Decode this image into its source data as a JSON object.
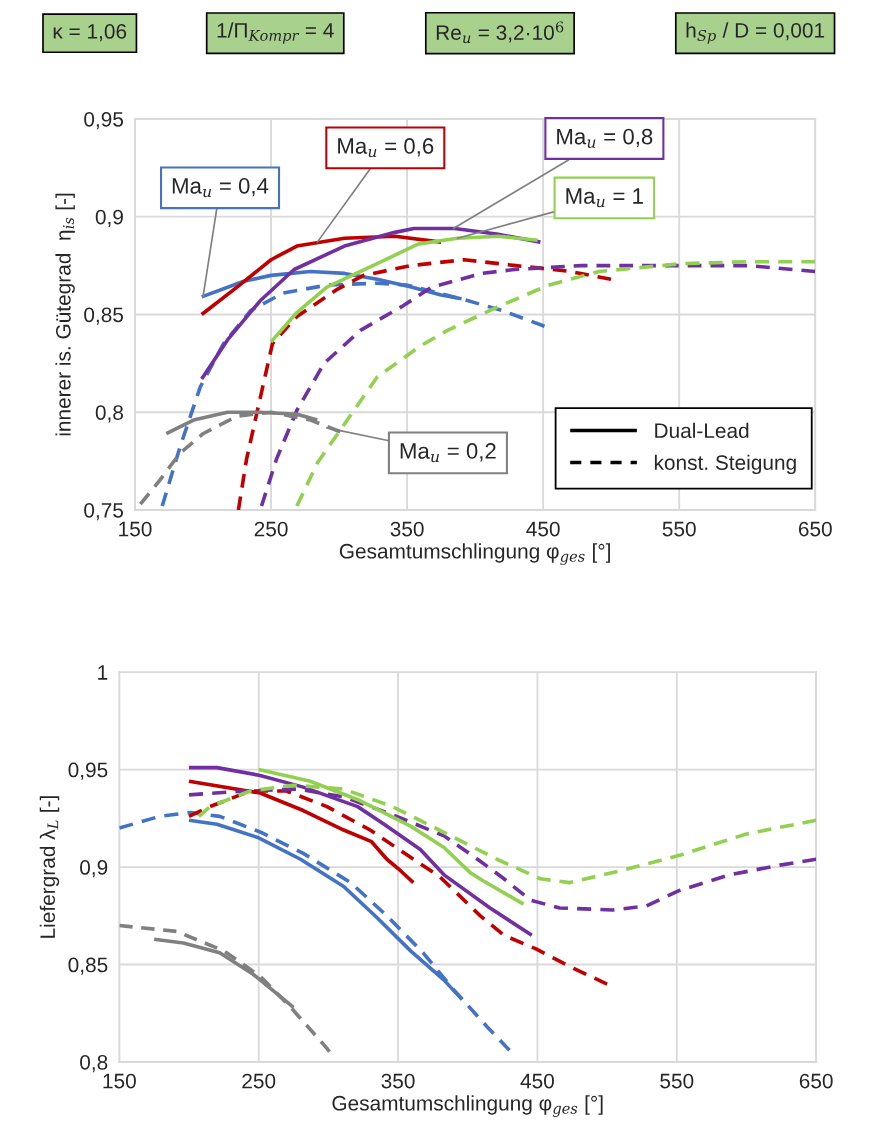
{
  "chart_data": [
    {
      "type": "line",
      "xlabel": "Gesamtumschlingung φ$_{ges}$ [°]",
      "ylabel": "innerer is. Gütegrad  η$_{is}$ [-]",
      "xlim": [
        150,
        650
      ],
      "xticks": [
        150,
        250,
        350,
        450,
        550,
        650
      ],
      "ylim": [
        0.75,
        0.95
      ],
      "yticks": [
        {
          "value": 0.75,
          "label": "0,75"
        },
        {
          "value": 0.8,
          "label": "0,8"
        },
        {
          "value": 0.85,
          "label": "0,85"
        },
        {
          "value": 0.9,
          "label": "0,9"
        },
        {
          "value": 0.95,
          "label": "0,95"
        }
      ],
      "grid": true,
      "legend": "bottom right",
      "annotations": [
        "κ = 1,06",
        "1/Π$_{Kompr}$ = 4",
        "Re$_{u}$ = 3,2·10$^{6}$",
        "h$_{Sp}$ / D = 0,001",
        {
          "text": "Ma$_{u}$ = 0,4",
          "x": 200,
          "y": 0.859
        },
        {
          "text": "Ma$_{u}$ = 0,6",
          "x": 284,
          "y": 0.887
        },
        {
          "text": "Ma$_{u}$ = 0,8",
          "x": 384,
          "y": 0.894
        },
        {
          "text": "Ma$_{u}$ = 1",
          "x": 387,
          "y": 0.889
        },
        {
          "text": "Ma$_{u}$ = 0,2",
          "x": 291,
          "y": 0.792
        }
      ],
      "series": [
        {
          "color": "#4472c4",
          "line_style": "solid",
          "x": [
            199,
            230,
            250,
            279,
            304,
            328,
            353,
            375,
            390
          ],
          "values": [
            0.859,
            0.867,
            0.87,
            0.872,
            0.871,
            0.868,
            0.864,
            0.86,
            0.858
          ]
        },
        {
          "color": "#4472c4",
          "line_style": "dashed",
          "x": [
            170,
            183,
            198,
            215,
            235,
            259,
            291,
            328,
            350,
            390,
            420,
            451
          ],
          "values": [
            0.752,
            0.782,
            0.813,
            0.835,
            0.852,
            0.861,
            0.865,
            0.866,
            0.865,
            0.858,
            0.852,
            0.844
          ]
        },
        {
          "color": "#c00000",
          "line_style": "solid",
          "x": [
            199,
            225,
            250,
            269,
            304,
            341,
            375
          ],
          "values": [
            0.85,
            0.864,
            0.878,
            0.885,
            0.889,
            0.89,
            0.887
          ]
        },
        {
          "color": "#c00000",
          "line_style": "dashed",
          "x": [
            226,
            232,
            240,
            251,
            269,
            299,
            318,
            353,
            392,
            430,
            470,
            500
          ],
          "values": [
            0.75,
            0.776,
            0.801,
            0.835,
            0.849,
            0.863,
            0.87,
            0.875,
            0.878,
            0.875,
            0.872,
            0.868
          ]
        },
        {
          "color": "#7030a0",
          "line_style": "solid",
          "x": [
            199,
            218,
            242,
            267,
            304,
            341,
            355,
            385,
            417,
            448
          ],
          "values": [
            0.817,
            0.837,
            0.857,
            0.873,
            0.885,
            0.892,
            0.894,
            0.894,
            0.891,
            0.887
          ]
        },
        {
          "color": "#7030a0",
          "line_style": "dashed",
          "x": [
            243,
            254,
            269,
            289,
            316,
            346,
            368,
            405,
            429,
            478,
            552,
            601,
            650
          ],
          "values": [
            0.752,
            0.776,
            0.801,
            0.825,
            0.842,
            0.854,
            0.864,
            0.871,
            0.873,
            0.875,
            0.875,
            0.875,
            0.872
          ]
        },
        {
          "color": "#92d050",
          "line_style": "solid",
          "x": [
            250,
            269,
            291,
            328,
            358,
            377,
            387,
            417,
            446
          ],
          "values": [
            0.836,
            0.851,
            0.864,
            0.876,
            0.886,
            0.888,
            0.889,
            0.89,
            0.888
          ]
        },
        {
          "color": "#92d050",
          "line_style": "dashed",
          "x": [
            269,
            284,
            304,
            328,
            360,
            380,
            417,
            454,
            491,
            552,
            601,
            650
          ],
          "values": [
            0.752,
            0.774,
            0.794,
            0.818,
            0.834,
            0.842,
            0.854,
            0.865,
            0.872,
            0.876,
            0.877,
            0.877
          ]
        },
        {
          "color": "#808080",
          "line_style": "solid",
          "x": [
            173,
            193,
            218,
            242,
            269,
            284
          ],
          "values": [
            0.789,
            0.796,
            0.8,
            0.8,
            0.799,
            0.796
          ]
        },
        {
          "color": "#808080",
          "line_style": "dashed",
          "x": [
            154,
            168,
            183,
            200,
            225,
            250,
            279,
            301
          ],
          "values": [
            0.753,
            0.765,
            0.779,
            0.789,
            0.798,
            0.8,
            0.796,
            0.79
          ]
        },
        {
          "name": "Dual-Lead",
          "color": "#000000",
          "line_style": "solid"
        },
        {
          "name": "konst. Steigung",
          "color": "#000000",
          "line_style": "dashed"
        }
      ]
    },
    {
      "type": "line",
      "xlabel": "Gesamtumschlingung φ$_{ges}$ [°]",
      "ylabel": "Liefergrad λ$_{L}$ [-]",
      "xlim": [
        150,
        650
      ],
      "xticks": [
        150,
        250,
        350,
        450,
        550,
        650
      ],
      "ylim": [
        0.8,
        1
      ],
      "yticks": [
        {
          "value": 0.8,
          "label": "0,8"
        },
        {
          "value": 0.85,
          "label": "0,85"
        },
        {
          "value": 0.9,
          "label": "0,9"
        },
        {
          "value": 0.95,
          "label": "0,95"
        },
        1
      ],
      "grid": true,
      "series": [
        {
          "color": "#4472c4",
          "line_style": "solid",
          "x": [
            200,
            220,
            250,
            280,
            311,
            335,
            359,
            383,
            396
          ],
          "values": [
            0.924,
            0.922,
            0.915,
            0.904,
            0.89,
            0.874,
            0.857,
            0.842,
            0.832
          ]
        },
        {
          "color": "#4472c4",
          "line_style": "dashed",
          "x": [
            150,
            179,
            201,
            222,
            251,
            282,
            316,
            342,
            368,
            390,
            414,
            430
          ],
          "values": [
            0.92,
            0.926,
            0.928,
            0.926,
            0.918,
            0.907,
            0.892,
            0.875,
            0.856,
            0.837,
            0.818,
            0.806
          ]
        },
        {
          "color": "#c00000",
          "line_style": "solid",
          "x": [
            200,
            251,
            282,
            311,
            331,
            342,
            352,
            361
          ],
          "values": [
            0.944,
            0.938,
            0.929,
            0.919,
            0.913,
            0.904,
            0.898,
            0.892
          ]
        },
        {
          "color": "#c00000",
          "line_style": "dashed",
          "x": [
            200,
            215,
            244,
            270,
            299,
            330,
            359,
            380,
            409,
            426,
            449,
            476,
            500
          ],
          "values": [
            0.926,
            0.931,
            0.939,
            0.939,
            0.931,
            0.919,
            0.905,
            0.895,
            0.875,
            0.865,
            0.858,
            0.848,
            0.84
          ]
        },
        {
          "color": "#7030a0",
          "line_style": "solid",
          "x": [
            200,
            220,
            251,
            282,
            321,
            340,
            366,
            383,
            416,
            446
          ],
          "values": [
            0.951,
            0.951,
            0.947,
            0.941,
            0.931,
            0.922,
            0.909,
            0.896,
            0.879,
            0.865
          ]
        },
        {
          "color": "#7030a0",
          "line_style": "dashed",
          "x": [
            200,
            239,
            278,
            311,
            349,
            383,
            409,
            426,
            445,
            466,
            504,
            528,
            552,
            588,
            624,
            650
          ],
          "values": [
            0.937,
            0.939,
            0.94,
            0.936,
            0.926,
            0.916,
            0.903,
            0.894,
            0.883,
            0.879,
            0.878,
            0.88,
            0.888,
            0.896,
            0.901,
            0.904
          ]
        },
        {
          "color": "#92d050",
          "line_style": "solid",
          "x": [
            250,
            287,
            323,
            359,
            383,
            402,
            411,
            440
          ],
          "values": [
            0.95,
            0.944,
            0.934,
            0.921,
            0.91,
            0.897,
            0.893,
            0.881
          ]
        },
        {
          "color": "#92d050",
          "line_style": "dashed",
          "x": [
            207,
            215,
            244,
            275,
            311,
            346,
            385,
            421,
            452,
            473,
            509,
            552,
            600,
            650
          ],
          "values": [
            0.926,
            0.931,
            0.939,
            0.942,
            0.94,
            0.931,
            0.917,
            0.904,
            0.894,
            0.892,
            0.898,
            0.906,
            0.917,
            0.924
          ]
        },
        {
          "color": "#808080",
          "line_style": "solid",
          "x": [
            175,
            196,
            222,
            246,
            275
          ],
          "values": [
            0.863,
            0.861,
            0.856,
            0.845,
            0.828
          ]
        },
        {
          "color": "#808080",
          "line_style": "dashed",
          "x": [
            150,
            191,
            225,
            251,
            273,
            299,
            301
          ],
          "values": [
            0.87,
            0.867,
            0.857,
            0.844,
            0.828,
            0.807,
            0.805
          ]
        }
      ]
    }
  ]
}
